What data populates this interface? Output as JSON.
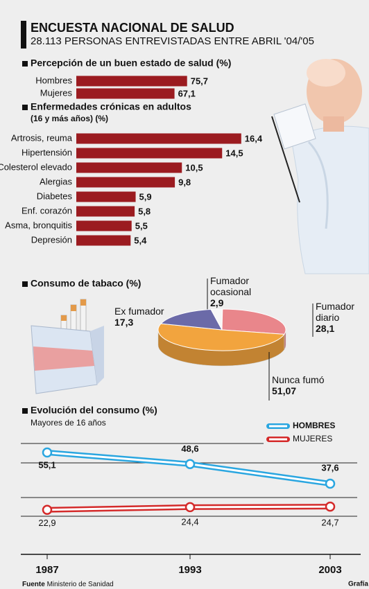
{
  "header": {
    "title": "ENCUESTA NACIONAL DE SALUD",
    "subtitle": "28.113 PERSONAS ENTREVISTADAS ENTRE ABRIL '04/'05"
  },
  "chart_data": [
    {
      "type": "hbar",
      "title": "Percepción de un buen estado de salud (%)",
      "categories": [
        "Hombres",
        "Mujeres"
      ],
      "values": [
        75.7,
        67.1
      ],
      "value_labels": [
        "75,7",
        "67,1"
      ],
      "color": "#9b1b20"
    },
    {
      "type": "hbar",
      "title": "Enfermedades crónicas en adultos",
      "subtitle": "(16 y más años) (%)",
      "categories": [
        "Artrosis, reuma",
        "Hipertensión",
        "Colesterol elevado",
        "Alergias",
        "Diabetes",
        "Enf. corazón",
        "Asma, bronquitis",
        "Depresión"
      ],
      "values": [
        16.4,
        14.5,
        10.5,
        9.8,
        5.9,
        5.8,
        5.5,
        5.4
      ],
      "value_labels": [
        "16,4",
        "14,5",
        "10,5",
        "9,8",
        "5,9",
        "5,8",
        "5,5",
        "5,4"
      ],
      "color": "#9b1b20"
    },
    {
      "type": "pie",
      "title": "Consumo de tabaco (%)",
      "categories": [
        "Fumador ocasional",
        "Fumador diario",
        "Nunca fumó",
        "Ex fumador"
      ],
      "values": [
        2.9,
        28.1,
        51.07,
        17.3
      ],
      "value_labels": [
        "2,9",
        "28,1",
        "51,07",
        "17,3"
      ],
      "colors": [
        "#f7f7f7",
        "#e9868b",
        "#f2a43e",
        "#6b6aa8"
      ]
    },
    {
      "type": "line",
      "title": "Evolución del consumo (%)",
      "subtitle": "Mayores de 16 años",
      "categories": [
        "1987",
        "1993",
        "2003"
      ],
      "series": [
        {
          "name": "HOMBRES",
          "color": "#2aa6e0",
          "values": [
            55.1,
            48.6,
            37.6
          ],
          "value_labels": [
            "55,1",
            "48,6",
            "37,6"
          ]
        },
        {
          "name": "MUJERES",
          "color": "#d42a2a",
          "values": [
            22.9,
            24.4,
            24.7
          ],
          "value_labels": [
            "22,9",
            "24,4",
            "24,7"
          ]
        }
      ]
    }
  ],
  "footer": {
    "source_label": "Fuente",
    "source": "Ministerio de Sanidad",
    "credit": "Grafía"
  }
}
